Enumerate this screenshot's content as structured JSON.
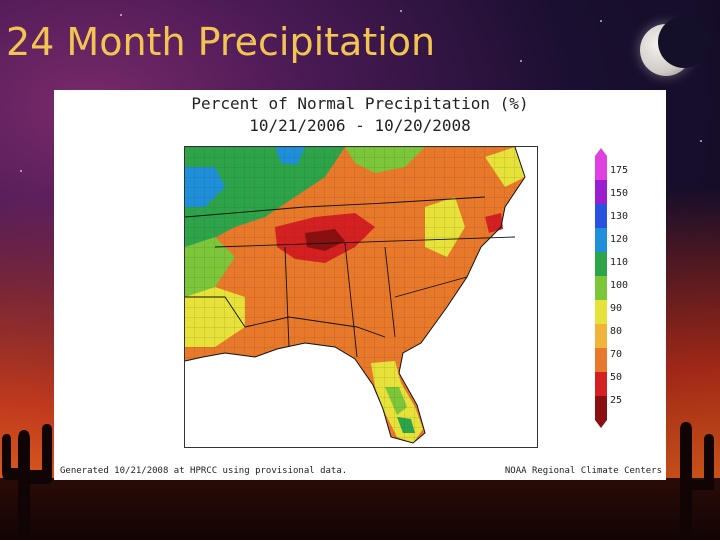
{
  "slide": {
    "title": "24 Month Precipitation"
  },
  "figure": {
    "title_line1": "Percent of Normal Precipitation (%)",
    "title_line2": "10/21/2006 - 10/20/2008",
    "footer_left": "Generated 10/21/2008 at HPRCC using provisional data.",
    "footer_right": "NOAA Regional Climate Centers"
  },
  "legend": {
    "labels": [
      "175",
      "150",
      "130",
      "120",
      "110",
      "100",
      "90",
      "80",
      "70",
      "50",
      "25"
    ],
    "colors": [
      "#e040e0",
      "#9a1fd0",
      "#2a52e0",
      "#1e8fd8",
      "#2da44a",
      "#7cc63a",
      "#e6e23a",
      "#f0b43a",
      "#e8782a",
      "#d42020",
      "#8a1010"
    ]
  },
  "colors": {
    "title_text": "#f2c451"
  }
}
